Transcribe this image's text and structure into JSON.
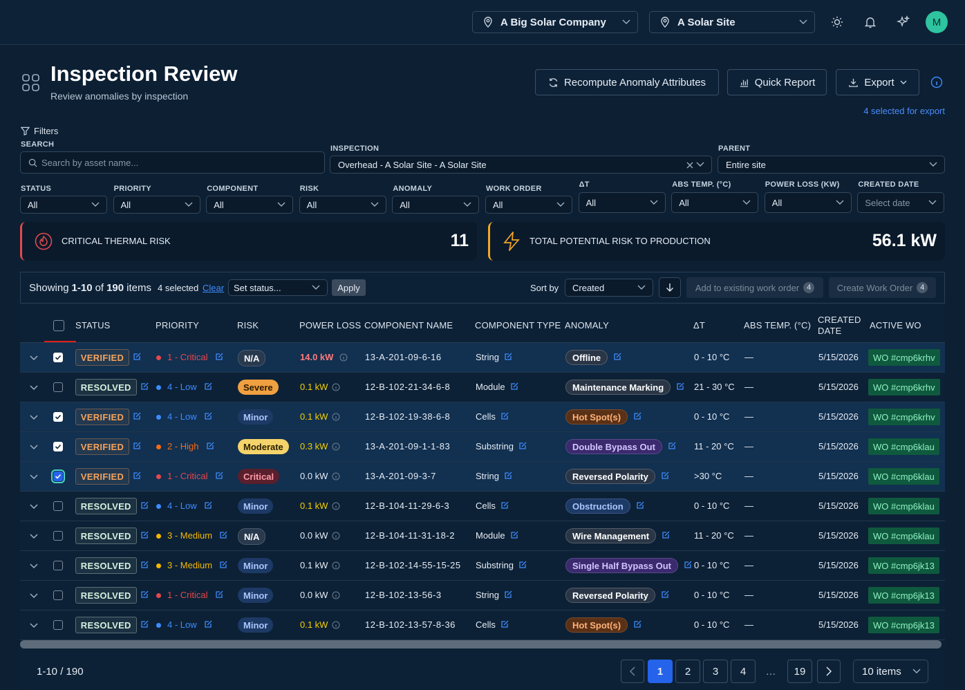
{
  "topbar": {
    "company": "A Big Solar Company",
    "site": "A Solar Site",
    "avatar": "M"
  },
  "header": {
    "title": "Inspection Review",
    "subtitle": "Review anomalies by inspection",
    "actions": [
      "Recompute Anomaly Attributes",
      "Quick Report",
      "Export"
    ],
    "export_note": "4 selected for export"
  },
  "filters": {
    "label": "Filters",
    "search": {
      "label": "SEARCH",
      "placeholder": "Search by asset name..."
    },
    "inspection": {
      "label": "INSPECTION",
      "value": "Overhead - A Solar Site - A Solar Site"
    },
    "parent": {
      "label": "PARENT",
      "value": "Entire site"
    },
    "selects": [
      {
        "label": "STATUS",
        "value": "All"
      },
      {
        "label": "PRIORITY",
        "value": "All"
      },
      {
        "label": "COMPONENT",
        "value": "All"
      },
      {
        "label": "RISK",
        "value": "All"
      },
      {
        "label": "ANOMALY",
        "value": "All"
      },
      {
        "label": "WORK ORDER",
        "value": "All"
      },
      {
        "label": "ΔT",
        "value": "All"
      },
      {
        "label": "ABS TEMP. (°C)",
        "value": "All"
      },
      {
        "label": "POWER LOSS (KW)",
        "value": "All"
      },
      {
        "label": "CREATED DATE",
        "value": "Select date"
      }
    ]
  },
  "kpis": [
    {
      "label": "CRITICAL THERMAL RISK",
      "value": "11",
      "color": "#e5484d"
    },
    {
      "label": "TOTAL POTENTIAL RISK TO PRODUCTION",
      "value": "56.1 kW",
      "color": "#f5a623"
    }
  ],
  "toolbar": {
    "showing": "Showing",
    "range": "1-10",
    "of": "of",
    "total": "190",
    "items": "items",
    "selected": "4 selected",
    "clear": "Clear",
    "set_status": "Set status...",
    "apply": "Apply",
    "sort_label": "Sort by",
    "sort_value": "Created",
    "add_existing": "Add to existing work order",
    "add_count": "4",
    "create": "Create Work Order",
    "create_count": "4"
  },
  "table": {
    "columns": [
      "STATUS",
      "PRIORITY",
      "RISK",
      "POWER LOSS",
      "COMPONENT NAME",
      "COMPONENT TYPE",
      "ANOMALY",
      "ΔT",
      "ABS TEMP. (°C)",
      "CREATED DATE",
      "ACTIVE WO"
    ],
    "rows": [
      {
        "selected": true,
        "status": "VERIFIED",
        "status_color": "#f5a35c",
        "priority": "1 - Critical",
        "priority_color": "#e5484d",
        "risk": "N/A",
        "risk_bg": "#2a3a4e",
        "risk_fg": "#ffffff",
        "power_loss": "14.0 kW",
        "power_color": "#ff7b7b",
        "component_name": "13-A-201-09-6-16",
        "component_type": "String",
        "anomaly": "Offline",
        "anomaly_bg": "#2a3646",
        "anomaly_fg": "#ffffff",
        "delta_t": "0 - 10 °C",
        "abs_temp": "—",
        "created": "5/15/2026",
        "active_wo": "WO #cmp6krhv"
      },
      {
        "selected": false,
        "status": "RESOLVED",
        "status_color": "#d6f0de",
        "priority": "4 - Low",
        "priority_color": "#3e8cff",
        "risk": "Severe",
        "risk_bg": "#f0a040",
        "risk_fg": "#2a1800",
        "power_loss": "0.1 kW",
        "power_color": "#f5d000",
        "component_name": "12-B-102-21-34-6-8",
        "component_type": "Module",
        "anomaly": "Maintenance Marking",
        "anomaly_bg": "#2a3646",
        "anomaly_fg": "#ffffff",
        "delta_t": "21 - 30 °C",
        "abs_temp": "—",
        "created": "5/15/2026",
        "active_wo": "WO #cmp6krhv"
      },
      {
        "selected": true,
        "status": "VERIFIED",
        "status_color": "#f5a35c",
        "priority": "4 - Low",
        "priority_color": "#3e8cff",
        "risk": "Minor",
        "risk_bg": "#1d3a66",
        "risk_fg": "#a9c6ff",
        "power_loss": "0.1 kW",
        "power_color": "#f5d000",
        "component_name": "12-B-102-19-38-6-8",
        "component_type": "Cells",
        "anomaly": "Hot Spot(s)",
        "anomaly_bg": "#5a3116",
        "anomaly_fg": "#ffb27a",
        "delta_t": "0 - 10 °C",
        "abs_temp": "—",
        "created": "5/15/2026",
        "active_wo": "WO #cmp6krhv"
      },
      {
        "selected": true,
        "status": "VERIFIED",
        "status_color": "#f5a35c",
        "priority": "2 - High",
        "priority_color": "#f76b15",
        "risk": "Moderate",
        "risk_bg": "#f5d36b",
        "risk_fg": "#2a2000",
        "power_loss": "0.3 kW",
        "power_color": "#f5d000",
        "component_name": "13-A-201-09-1-1-83",
        "component_type": "Substring",
        "anomaly": "Double Bypass Out",
        "anomaly_bg": "#3b2a6e",
        "anomaly_fg": "#d2c4ff",
        "delta_t": "11 - 20 °C",
        "abs_temp": "—",
        "created": "5/15/2026",
        "active_wo": "WO #cmp6klau"
      },
      {
        "selected": true,
        "status": "VERIFIED",
        "status_color": "#f5a35c",
        "priority": "1 - Critical",
        "priority_color": "#e5484d",
        "risk": "Critical",
        "risk_bg": "#5a1f2c",
        "risk_fg": "#ff9aa8",
        "power_loss": "0.0 kW",
        "power_color": "#e6edf5",
        "component_name": "13-A-201-09-3-7",
        "component_type": "String",
        "anomaly": "Reversed Polarity",
        "anomaly_bg": "#2a3646",
        "anomaly_fg": "#ffffff",
        "delta_t": ">30 °C",
        "abs_temp": "—",
        "created": "5/15/2026",
        "active_wo": "WO #cmp6klau"
      },
      {
        "selected": false,
        "status": "RESOLVED",
        "status_color": "#d6f0de",
        "priority": "4 - Low",
        "priority_color": "#3e8cff",
        "risk": "Minor",
        "risk_bg": "#1d3a66",
        "risk_fg": "#a9c6ff",
        "power_loss": "0.1 kW",
        "power_color": "#f5d000",
        "component_name": "12-B-104-11-29-6-3",
        "component_type": "Cells",
        "anomaly": "Obstruction",
        "anomaly_bg": "#1d3a66",
        "anomaly_fg": "#a9c6ff",
        "delta_t": "0 - 10 °C",
        "abs_temp": "—",
        "created": "5/15/2026",
        "active_wo": "WO #cmp6klau"
      },
      {
        "selected": false,
        "status": "RESOLVED",
        "status_color": "#d6f0de",
        "priority": "3 - Medium",
        "priority_color": "#f5b700",
        "risk": "N/A",
        "risk_bg": "#2a3a4e",
        "risk_fg": "#ffffff",
        "power_loss": "0.0 kW",
        "power_color": "#e6edf5",
        "component_name": "12-B-104-11-31-18-2",
        "component_type": "Module",
        "anomaly": "Wire Management",
        "anomaly_bg": "#2a3646",
        "anomaly_fg": "#ffffff",
        "delta_t": "11 - 20 °C",
        "abs_temp": "—",
        "created": "5/15/2026",
        "active_wo": "WO #cmp6klau"
      },
      {
        "selected": false,
        "status": "RESOLVED",
        "status_color": "#d6f0de",
        "priority": "3 - Medium",
        "priority_color": "#f5b700",
        "risk": "Minor",
        "risk_bg": "#1d3a66",
        "risk_fg": "#a9c6ff",
        "power_loss": "0.1 kW",
        "power_color": "#e6edf5",
        "component_name": "12-B-102-14-55-15-25",
        "component_type": "Substring",
        "anomaly": "Single Half Bypass Out",
        "anomaly_bg": "#3b2a6e",
        "anomaly_fg": "#d2c4ff",
        "delta_t": "0 - 10 °C",
        "abs_temp": "—",
        "created": "5/15/2026",
        "active_wo": "WO #cmp6jk13"
      },
      {
        "selected": false,
        "status": "RESOLVED",
        "status_color": "#d6f0de",
        "priority": "1 - Critical",
        "priority_color": "#e5484d",
        "risk": "Minor",
        "risk_bg": "#1d3a66",
        "risk_fg": "#a9c6ff",
        "power_loss": "0.0 kW",
        "power_color": "#e6edf5",
        "component_name": "12-B-102-13-56-3",
        "component_type": "String",
        "anomaly": "Reversed Polarity",
        "anomaly_bg": "#2a3646",
        "anomaly_fg": "#ffffff",
        "delta_t": "0 - 10 °C",
        "abs_temp": "—",
        "created": "5/15/2026",
        "active_wo": "WO #cmp6jk13"
      },
      {
        "selected": false,
        "status": "RESOLVED",
        "status_color": "#d6f0de",
        "priority": "4 - Low",
        "priority_color": "#3e8cff",
        "risk": "Minor",
        "risk_bg": "#1d3a66",
        "risk_fg": "#a9c6ff",
        "power_loss": "0.1 kW",
        "power_color": "#f5d000",
        "component_name": "12-B-102-13-57-8-36",
        "component_type": "Cells",
        "anomaly": "Hot Spot(s)",
        "anomaly_bg": "#5a3116",
        "anomaly_fg": "#ffb27a",
        "delta_t": "0 - 10 °C",
        "abs_temp": "—",
        "created": "5/15/2026",
        "active_wo": "WO #cmp6jk13"
      }
    ]
  },
  "pagination": {
    "summary": "1-10 / 190",
    "pages": [
      1,
      2,
      3,
      4,
      "…",
      19
    ],
    "current": 1,
    "per_page": "10 items"
  }
}
